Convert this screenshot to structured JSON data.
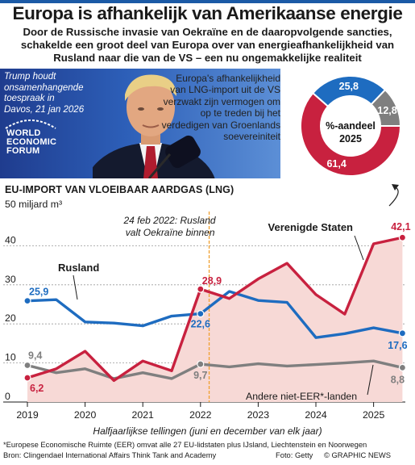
{
  "header": {
    "title": "Europa is afhankelijk van Amerikaanse energie",
    "subtitle": "Door de Russische invasie van Oekraïne en de daaropvolgende sancties, schakelde een groot deel van Europa over van energieafhankelijkheid van Rusland naar die van de VS – een nu ongemakkelijke realiteit"
  },
  "photo": {
    "caption": "Trump houdt onsamenhangende toespraak in Davos, 21 jan 2026",
    "logo_lines": [
      "WORLD",
      "ECONOMIC",
      "FORUM"
    ]
  },
  "side_note": "Europa's afhankelijkheid van LNG-import uit de VS verzwakt zijn vermogen om op te treden bij het verdedigen van Groenlands soevereiniteit",
  "donut": {
    "center_line1": "%-aandeel",
    "center_line2": "2025",
    "slices": [
      {
        "value": 61.4,
        "label": "61,4",
        "color": "#c8213f"
      },
      {
        "value": 25.8,
        "label": "25,8",
        "color": "#1e6cc0"
      },
      {
        "value": 12.8,
        "label": "12,8",
        "color": "#7f7f7f"
      }
    ]
  },
  "chart_data": {
    "type": "line",
    "title": "EU-IMPORT VAN VLOEIBAAR AARDGAS (LNG)",
    "ylabel": "miljard m³",
    "y_unit_label": "50 miljard m³",
    "xlabel": "Halfjaarlijkse tellingen (juni en december van elk jaar)",
    "ylim": [
      0,
      50
    ],
    "yticks": [
      0,
      10,
      20,
      30,
      40
    ],
    "xlim": [
      2019.0,
      2025.55
    ],
    "xticks": [
      2019,
      2020,
      2021,
      2022,
      2023,
      2024,
      2025
    ],
    "x": [
      2019.0,
      2019.5,
      2020.0,
      2020.5,
      2021.0,
      2021.5,
      2022.0,
      2022.5,
      2023.0,
      2023.5,
      2024.0,
      2024.5,
      2025.0,
      2025.5
    ],
    "series": [
      {
        "name": "Verenigde Staten",
        "color": "#c8213f",
        "fill": true,
        "values": [
          6.2,
          8.5,
          13.0,
          5.5,
          10.5,
          8.0,
          28.9,
          26.5,
          31.5,
          35.5,
          27.5,
          22.5,
          40.5,
          42.1
        ]
      },
      {
        "name": "Rusland",
        "color": "#1e6cc0",
        "values": [
          25.9,
          26.2,
          20.5,
          20.2,
          19.5,
          22.0,
          22.6,
          28.3,
          26.0,
          25.5,
          16.5,
          17.5,
          19.0,
          17.6
        ]
      },
      {
        "name": "Andere niet-EER*-landen",
        "color": "#7f7f7f",
        "values": [
          9.4,
          7.5,
          8.5,
          6.0,
          7.5,
          6.0,
          9.7,
          9.0,
          9.8,
          9.2,
          9.6,
          10.0,
          10.5,
          8.8
        ]
      }
    ],
    "data_labels": [
      {
        "series": 1,
        "index": 0,
        "text": "25,9"
      },
      {
        "series": 0,
        "index": 0,
        "text": "6,2"
      },
      {
        "series": 2,
        "index": 0,
        "text": "9,4"
      },
      {
        "series": 0,
        "index": 6,
        "text": "28,9"
      },
      {
        "series": 1,
        "index": 6,
        "text": "22,6"
      },
      {
        "series": 2,
        "index": 6,
        "text": "9,7"
      },
      {
        "series": 0,
        "index": 13,
        "text": "42,1"
      },
      {
        "series": 1,
        "index": 13,
        "text": "17,6"
      },
      {
        "series": 2,
        "index": 13,
        "text": "8,8"
      }
    ],
    "annotation": {
      "x": 2022.15,
      "line1": "24 feb 2022: Rusland",
      "line2": "valt Oekraïne binnen",
      "color": "#f0a030"
    }
  },
  "footer": {
    "footnote": "*Europese Economische Ruimte (EER) omvat alle 27 EU-lidstaten plus IJsland, Liechtenstein en Noorwegen",
    "source": "Bron: Clingendael International Affairs Think Tank and Academy",
    "photo_credit": "Foto: Getty",
    "copyright": "© GRAPHIC NEWS"
  }
}
